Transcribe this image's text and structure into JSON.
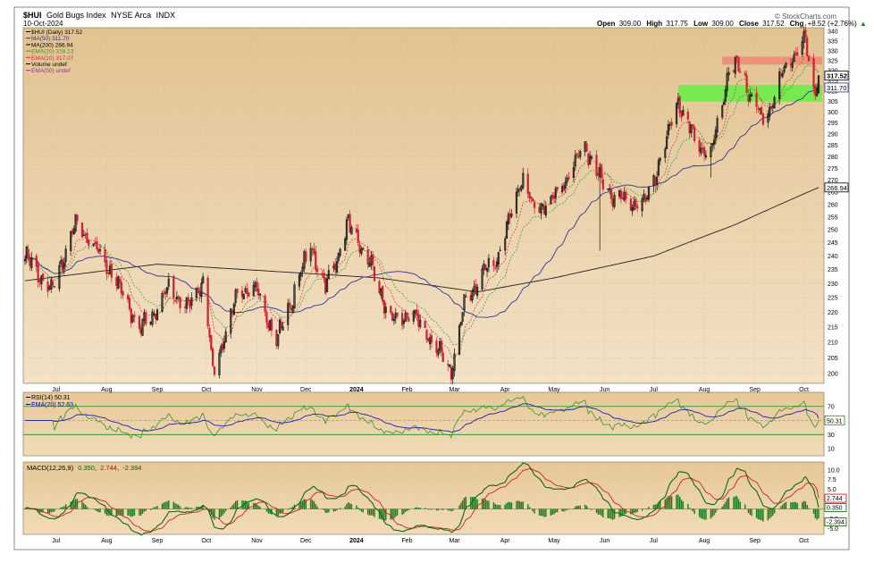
{
  "header": {
    "symbol": "$HUI",
    "name": "Gold Bugs Index",
    "exchange": "NYSE Arca",
    "exchange_suffix": "INDX",
    "date": "10-Oct-2024",
    "ohlc": {
      "open_label": "Open",
      "open": "309.00",
      "high_label": "High",
      "high": "317.75",
      "low_label": "Low",
      "low": "309.00",
      "close_label": "Close",
      "close": "317.52",
      "chg_label": "Chg",
      "chg": "+8.52 (+2.76%)",
      "chg_arrow": "▲"
    },
    "watermark": "© StockCharts.com"
  },
  "legend_price": [
    {
      "text": "$HUI (Daily) 317.52",
      "color": "#000000"
    },
    {
      "text": "MA(50) 311.70",
      "color": "#333399"
    },
    {
      "text": "MA(200) 266.94",
      "color": "#000000"
    },
    {
      "text": "EMA(20) 318.13",
      "color": "#339933"
    },
    {
      "text": "EMA(10) 317.07",
      "color": "#cc3333"
    },
    {
      "text": "Volume undef",
      "color": "#000000"
    },
    {
      "text": "EMA(50) undef",
      "color": "#993399"
    }
  ],
  "legend_rsi": [
    {
      "text": "RSI(14) 50.31",
      "color": "#000000"
    },
    {
      "text": "EMA(20) 52.63",
      "color": "#000099"
    }
  ],
  "legend_macd": {
    "label": "MACD(12,26,9)",
    "values": [
      {
        "text": "0.350",
        "color": "#006600"
      },
      {
        "text": "2.744",
        "color": "#cc0000"
      },
      {
        "text": "-2.394",
        "color": "#006600"
      }
    ]
  },
  "colors": {
    "background": "#e9cea2",
    "background_light": "#f3e2c4",
    "up_candle": "#111111",
    "down_candle": "#cc2233",
    "ma50": "#333399",
    "ma200": "#222222",
    "ema20": "#339933",
    "ema10": "#cc3333",
    "resistance_zone": "#f08070",
    "support_zone": "#66ee44",
    "rsi_line": "#228822",
    "rsi_ema": "#2222aa",
    "macd_line": "#116611",
    "signal_line": "#cc2222",
    "histogram": "#1a7a1a"
  },
  "chart_data": [
    {
      "type": "candlestick",
      "title": "$HUI Gold Bugs Index",
      "x_tick_labels": [
        "Jul",
        "Aug",
        "Sep",
        "Oct",
        "Nov",
        "Dec",
        "2024",
        "Feb",
        "Mar",
        "Apr",
        "May",
        "Jun",
        "Jul",
        "Aug",
        "Sep",
        "Oct"
      ],
      "y_tick_labels": [
        "200",
        "205",
        "210",
        "215",
        "220",
        "225",
        "230",
        "235",
        "240",
        "245",
        "250",
        "255",
        "260",
        "265",
        "270",
        "275",
        "280",
        "285",
        "290",
        "295",
        "300",
        "305",
        "310",
        "315",
        "320",
        "325",
        "330",
        "335",
        "340"
      ],
      "ylim": [
        197,
        342
      ],
      "scale": "log",
      "grid": true,
      "price_keypoints": [
        {
          "date": "2023-06-12",
          "close": 240
        },
        {
          "date": "2023-06-28",
          "close": 227
        },
        {
          "date": "2023-07-13",
          "close": 252
        },
        {
          "date": "2023-07-31",
          "close": 238
        },
        {
          "date": "2023-08-22",
          "close": 214
        },
        {
          "date": "2023-09-08",
          "close": 228
        },
        {
          "date": "2023-09-20",
          "close": 221
        },
        {
          "date": "2023-09-29",
          "close": 232
        },
        {
          "date": "2023-10-05",
          "close": 200
        },
        {
          "date": "2023-10-20",
          "close": 226
        },
        {
          "date": "2023-11-01",
          "close": 228
        },
        {
          "date": "2023-11-13",
          "close": 210
        },
        {
          "date": "2023-11-27",
          "close": 232
        },
        {
          "date": "2023-12-04",
          "close": 244
        },
        {
          "date": "2023-12-13",
          "close": 228
        },
        {
          "date": "2023-12-27",
          "close": 252
        },
        {
          "date": "2024-01-10",
          "close": 236
        },
        {
          "date": "2024-01-22",
          "close": 217
        },
        {
          "date": "2024-02-05",
          "close": 219
        },
        {
          "date": "2024-02-28",
          "close": 201
        },
        {
          "date": "2024-03-08",
          "close": 225
        },
        {
          "date": "2024-03-28",
          "close": 240
        },
        {
          "date": "2024-04-08",
          "close": 265
        },
        {
          "date": "2024-04-12",
          "close": 272
        },
        {
          "date": "2024-04-18",
          "close": 258
        },
        {
          "date": "2024-05-01",
          "close": 262
        },
        {
          "date": "2024-05-20",
          "close": 285
        },
        {
          "date": "2024-05-30",
          "close": 270
        },
        {
          "date": "2024-06-07",
          "close": 262
        },
        {
          "date": "2024-06-26",
          "close": 260
        },
        {
          "date": "2024-07-05",
          "close": 278
        },
        {
          "date": "2024-07-16",
          "close": 305
        },
        {
          "date": "2024-07-26",
          "close": 287
        },
        {
          "date": "2024-08-05",
          "close": 280
        },
        {
          "date": "2024-08-16",
          "close": 320
        },
        {
          "date": "2024-08-22",
          "close": 322
        },
        {
          "date": "2024-09-06",
          "close": 295
        },
        {
          "date": "2024-09-20",
          "close": 322
        },
        {
          "date": "2024-10-02",
          "close": 335
        },
        {
          "date": "2024-10-07",
          "close": 310
        },
        {
          "date": "2024-10-10",
          "close": 317.52
        }
      ],
      "last_close": 317.52,
      "ma50_last": 311.7,
      "ma200_last": 266.94,
      "ma200_keypoints": [
        {
          "date": "2023-06-12",
          "value": 231
        },
        {
          "date": "2023-09-01",
          "value": 237
        },
        {
          "date": "2024-01-15",
          "value": 232
        },
        {
          "date": "2024-03-15",
          "value": 227
        },
        {
          "date": "2024-05-01",
          "value": 232
        },
        {
          "date": "2024-07-01",
          "value": 240
        },
        {
          "date": "2024-08-20",
          "value": 252
        },
        {
          "date": "2024-10-10",
          "value": 266.94
        }
      ],
      "resistance_zone": [
        323,
        327
      ],
      "support_zone": [
        305,
        313
      ]
    },
    {
      "type": "line",
      "title": "RSI(14)",
      "y_tick_labels": [
        "70",
        "50",
        "30",
        "10"
      ],
      "ylim": [
        0,
        90
      ],
      "last_value": 50.31,
      "ema20_last": 52.63,
      "guide_lines": [
        70,
        30
      ]
    },
    {
      "type": "line",
      "title": "MACD(12,26,9)",
      "y_tick_labels": [
        "10.0",
        "7.5",
        "5.0",
        "2.5",
        "0.0",
        "-2.5",
        "-5.0"
      ],
      "ylim": [
        -6.5,
        12
      ],
      "macd_last": 0.35,
      "signal_last": 2.744,
      "histogram_last": -2.394
    }
  ],
  "axis_tags": {
    "price_close": "317.52",
    "price_ma50": "311.70",
    "price_ma200": "266.94",
    "rsi_value": "50.31",
    "macd_signal": "2.744",
    "macd_value": "0.350",
    "macd_hist": "-2.394"
  }
}
